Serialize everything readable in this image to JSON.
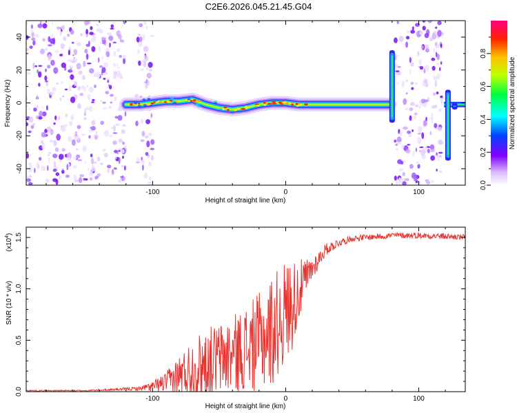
{
  "title": "C2E6.2026.045.21.45.G04",
  "chart_data": [
    {
      "type": "heatmap",
      "name": "spectrogram",
      "xlabel": "Height of straight line (km)",
      "ylabel": "Frequency (Hz)",
      "xlim": [
        -195,
        135
      ],
      "ylim": [
        -50,
        50
      ],
      "xticks": [
        -100,
        0,
        100
      ],
      "xtick_labels": [
        "-100",
        "0",
        "100"
      ],
      "yticks": [
        -40,
        -20,
        0,
        20,
        40
      ],
      "ytick_labels": [
        "-40",
        "-20",
        "0",
        "20",
        "40"
      ],
      "noise_regions_km": [
        [
          -195,
          -120
        ],
        [
          -112,
          -100
        ],
        [
          82,
          118
        ]
      ],
      "signal_trace": {
        "x": [
          -120,
          -110,
          -100,
          -90,
          -80,
          -70,
          -60,
          -50,
          -40,
          -30,
          -20,
          -10,
          0,
          10,
          20,
          40,
          60,
          78
        ],
        "y": [
          -1,
          -1,
          0,
          1,
          1,
          2,
          -1,
          -3,
          -4,
          -3,
          -1,
          0,
          0,
          -1,
          -1,
          -1,
          -1,
          -1
        ]
      },
      "spikes": [
        {
          "x": 80,
          "y_min": -12,
          "y_max": 32
        },
        {
          "x": 122,
          "y_min": -35,
          "y_max": 8
        },
        {
          "x": 127,
          "y_min": -4,
          "y_max": 0
        }
      ],
      "colorbar": {
        "label": "Normalized spectral amplitude",
        "range": [
          0,
          1
        ],
        "ticks": [
          0.0,
          0.2,
          0.4,
          0.6,
          0.8
        ],
        "tick_labels": [
          "0.0",
          "0.2",
          "0.4",
          "0.6",
          "0.8"
        ]
      }
    },
    {
      "type": "line",
      "name": "snr",
      "xlabel": "Height of straight line (km)",
      "ylabel": "SNR (10 * v/v)",
      "y_multiplier": "(x10",
      "y_multiplier_exp": "4",
      "y_multiplier_close": ")",
      "xlim": [
        -195,
        135
      ],
      "ylim": [
        0,
        1.6
      ],
      "xticks": [
        -100,
        0,
        100
      ],
      "xtick_labels": [
        "-100",
        "0",
        "100"
      ],
      "yticks": [
        0.0,
        0.5,
        1.0,
        1.5
      ],
      "ytick_labels": [
        "0.0",
        "0.5",
        "1.0",
        "1.5"
      ],
      "color": "#e8322e",
      "series": [
        {
          "name": "SNR",
          "x": [
            -195,
            -150,
            -130,
            -110,
            -100,
            -90,
            -80,
            -70,
            -60,
            -50,
            -40,
            -30,
            -20,
            -10,
            0,
            5,
            10,
            20,
            30,
            40,
            50,
            60,
            80,
            100,
            120,
            135
          ],
          "mean": [
            0.01,
            0.01,
            0.02,
            0.03,
            0.05,
            0.09,
            0.16,
            0.22,
            0.28,
            0.32,
            0.36,
            0.42,
            0.48,
            0.6,
            0.78,
            0.86,
            0.98,
            1.2,
            1.38,
            1.45,
            1.49,
            1.5,
            1.52,
            1.52,
            1.51,
            1.5
          ],
          "amp": [
            0.006,
            0.006,
            0.01,
            0.02,
            0.05,
            0.1,
            0.2,
            0.3,
            0.34,
            0.36,
            0.38,
            0.42,
            0.48,
            0.55,
            0.5,
            0.45,
            0.3,
            0.12,
            0.06,
            0.04,
            0.03,
            0.03,
            0.03,
            0.03,
            0.03,
            0.03
          ]
        }
      ]
    }
  ]
}
